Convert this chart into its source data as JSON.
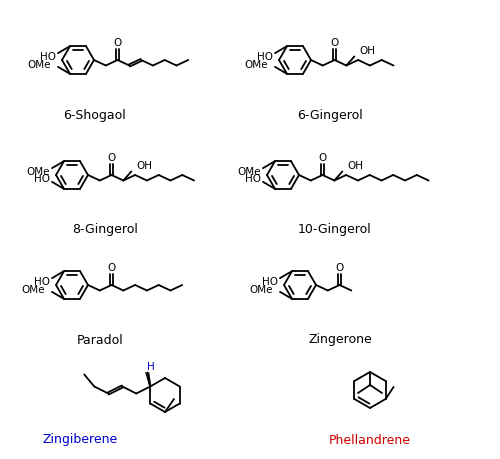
{
  "background_color": "#ffffff",
  "label_6shogaol": "6-Shogaol",
  "label_6gingerol": "6-Gingerol",
  "label_8gingerol": "8-Gingerol",
  "label_10gingerol": "10-Gingerol",
  "label_paradol": "Paradol",
  "label_zingerone": "Zingerone",
  "label_zingiberene": "Zingiberene",
  "label_phellandrene": "Phellandrene",
  "color_zingiberene": "#0000cc",
  "color_phellandrene": "#cc0000",
  "color_black": "#000000",
  "figsize": [
    5.0,
    4.59
  ],
  "dpi": 100
}
